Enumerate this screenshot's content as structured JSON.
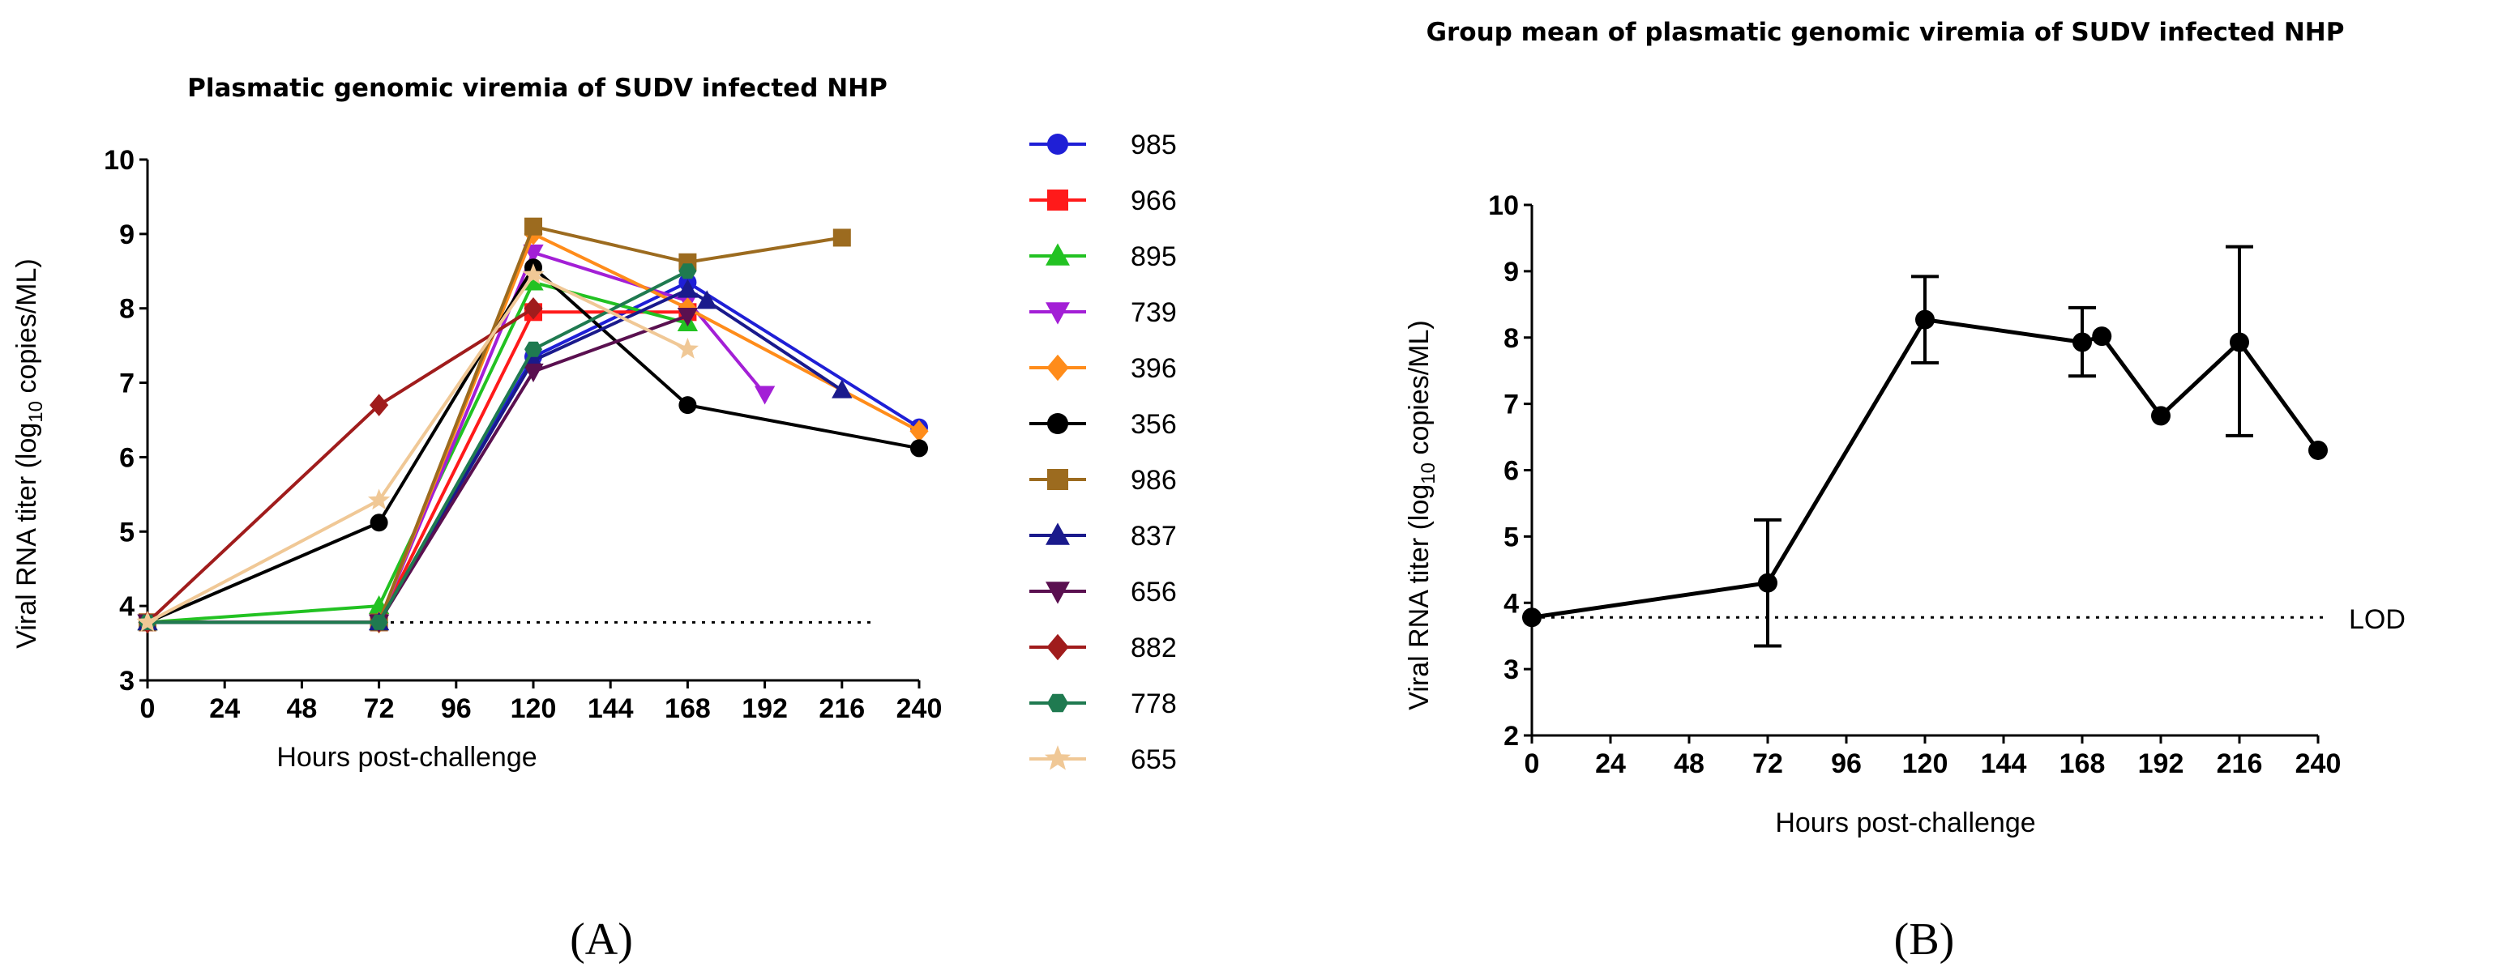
{
  "chart_data": [
    {
      "type": "line",
      "panel_label": "(A)",
      "title": "Plasmatic genomic viremia of SUDV infected NHP",
      "xlabel": "Hours post-challenge",
      "ylabel": "Viral RNA titer (log10 copies/ML)",
      "ylabel_parts": {
        "main": "Viral RNA titer (log",
        "sub": "10",
        "tail": " copies/ML)"
      },
      "xlim": [
        0,
        240
      ],
      "ylim": [
        3,
        10
      ],
      "xticks": [
        0,
        24,
        48,
        72,
        96,
        120,
        144,
        168,
        192,
        216,
        240
      ],
      "yticks": [
        3,
        4,
        5,
        6,
        7,
        8,
        9,
        10
      ],
      "lod_line": 3.78,
      "legend_position": "right",
      "series": [
        {
          "name": "985",
          "color": "#1f1fd6",
          "marker": "circle",
          "x": [
            0,
            72,
            120,
            168,
            240
          ],
          "y": [
            3.78,
            3.78,
            7.35,
            8.35,
            6.4
          ]
        },
        {
          "name": "966",
          "color": "#ff1a1a",
          "marker": "square",
          "x": [
            0,
            72,
            120,
            168
          ],
          "y": [
            3.78,
            3.78,
            7.95,
            7.95
          ]
        },
        {
          "name": "895",
          "color": "#22c222",
          "marker": "triangle",
          "x": [
            0,
            72,
            120,
            168
          ],
          "y": [
            3.78,
            4.0,
            8.35,
            7.8
          ]
        },
        {
          "name": "739",
          "color": "#a31fd6",
          "marker": "triangle-down",
          "x": [
            0,
            72,
            120,
            168,
            192
          ],
          "y": [
            3.78,
            3.78,
            8.75,
            8.1,
            6.85
          ]
        },
        {
          "name": "396",
          "color": "#ff8c1a",
          "marker": "diamond",
          "x": [
            0,
            72,
            120,
            168,
            240
          ],
          "y": [
            3.78,
            3.78,
            9.0,
            8.0,
            6.35
          ]
        },
        {
          "name": "356",
          "color": "#000000",
          "marker": "circle",
          "x": [
            0,
            72,
            120,
            168,
            240
          ],
          "y": [
            3.78,
            5.12,
            8.55,
            6.7,
            6.12
          ]
        },
        {
          "name": "986",
          "color": "#9c6b1f",
          "marker": "square",
          "x": [
            0,
            72,
            120,
            168,
            216
          ],
          "y": [
            3.78,
            3.78,
            9.1,
            8.62,
            8.95
          ]
        },
        {
          "name": "837",
          "color": "#1a1a8c",
          "marker": "triangle",
          "x": [
            0,
            72,
            120,
            168,
            174,
            216
          ],
          "y": [
            3.78,
            3.78,
            7.3,
            8.25,
            8.1,
            6.9
          ]
        },
        {
          "name": "656",
          "color": "#5a1050",
          "marker": "triangle-down",
          "x": [
            0,
            72,
            120,
            168
          ],
          "y": [
            3.78,
            3.78,
            7.15,
            7.9
          ]
        },
        {
          "name": "882",
          "color": "#a01c1c",
          "marker": "diamond",
          "x": [
            0,
            72,
            120
          ],
          "y": [
            3.78,
            6.7,
            8.0
          ]
        },
        {
          "name": "778",
          "color": "#1f7a50",
          "marker": "hexagon",
          "x": [
            0,
            72,
            120,
            168
          ],
          "y": [
            3.78,
            3.78,
            7.45,
            8.5
          ]
        },
        {
          "name": "655",
          "color": "#f0c896",
          "marker": "star",
          "x": [
            0,
            72,
            120,
            168
          ],
          "y": [
            3.78,
            5.42,
            8.45,
            7.45
          ]
        }
      ]
    },
    {
      "type": "line",
      "panel_label": "(B)",
      "title": "Group mean of plasmatic genomic viremia of SUDV infected NHP",
      "xlabel": "Hours post-challenge",
      "ylabel": "Viral RNA titer (log10 copies/ML)",
      "ylabel_parts": {
        "main": "Viral RNA titer (log",
        "sub": "10",
        "tail": " copies/ML)"
      },
      "xlim": [
        0,
        240
      ],
      "ylim": [
        2,
        10
      ],
      "xticks": [
        0,
        24,
        48,
        72,
        96,
        120,
        144,
        168,
        192,
        216,
        240
      ],
      "yticks": [
        2,
        3,
        4,
        5,
        6,
        7,
        8,
        9,
        10
      ],
      "lod_line": 3.78,
      "lod_label": "LOD",
      "series": [
        {
          "name": "Group mean",
          "color": "#000000",
          "marker": "circle",
          "x": [
            0,
            72,
            120,
            168,
            174,
            192,
            216,
            240
          ],
          "y": [
            3.78,
            4.3,
            8.27,
            7.93,
            8.02,
            6.82,
            7.93,
            6.3
          ],
          "err_low": [
            null,
            3.35,
            7.62,
            7.42,
            null,
            null,
            6.52,
            null
          ],
          "err_high": [
            null,
            5.25,
            8.92,
            8.45,
            null,
            null,
            9.37,
            null
          ]
        }
      ]
    }
  ]
}
